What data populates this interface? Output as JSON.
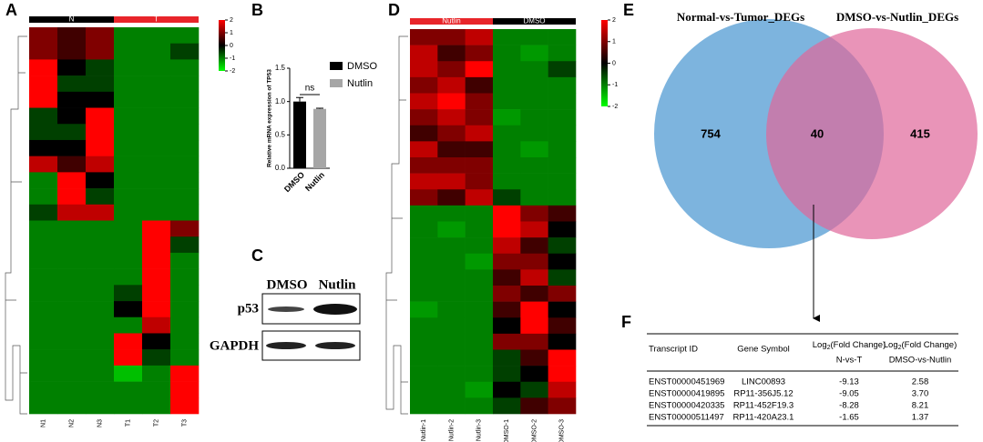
{
  "panels": {
    "a": "A",
    "b": "B",
    "c": "C",
    "d": "D",
    "e": "E",
    "f": "F"
  },
  "heatmap_a": {
    "groups": [
      "N",
      "T"
    ],
    "columns": [
      "N1",
      "N2",
      "N3",
      "T1",
      "T2",
      "T3"
    ],
    "colorbar_ticks": [
      2,
      1,
      0,
      -1,
      -2
    ],
    "blocks": [
      [
        1,
        0.5,
        1,
        -1,
        -1,
        -1
      ],
      [
        1,
        0.5,
        1,
        -1,
        -1,
        -0.5
      ],
      [
        2,
        0,
        -0.5,
        -1,
        -1,
        -1
      ],
      [
        2,
        -0.5,
        -0.5,
        -1,
        -1,
        -1
      ],
      [
        2,
        0,
        0,
        -1,
        -1,
        -1
      ],
      [
        -0.5,
        0,
        2,
        -1,
        -1,
        -1
      ],
      [
        -0.5,
        -0.5,
        2,
        -1,
        -1,
        -1
      ],
      [
        0,
        0,
        2,
        -1,
        -1,
        -1
      ],
      [
        1.5,
        0.5,
        1.5,
        -1,
        -1,
        -1
      ],
      [
        -1,
        2,
        0,
        -1,
        -1,
        -1
      ],
      [
        -1,
        2,
        -0.5,
        -1,
        -1,
        -1
      ],
      [
        -0.5,
        1.5,
        1.5,
        -1,
        -1,
        -1
      ],
      [
        -1,
        -1,
        -1,
        -1,
        2,
        1
      ],
      [
        -1,
        -1,
        -1,
        -1,
        2,
        -0.5
      ],
      [
        -1,
        -1,
        -1,
        -1,
        2,
        -1
      ],
      [
        -1,
        -1,
        -1,
        -1,
        2,
        -1
      ],
      [
        -1,
        -1,
        -1,
        -0.5,
        2,
        -1
      ],
      [
        -1,
        -1,
        -1,
        0,
        2,
        -1
      ],
      [
        -1,
        -1,
        -1,
        -1,
        1.5,
        -1
      ],
      [
        -1,
        -1,
        -1,
        2,
        0,
        -1
      ],
      [
        -1,
        -1,
        -1,
        2,
        -0.5,
        -1
      ],
      [
        -1,
        -1,
        -1,
        -1.5,
        -1,
        2
      ],
      [
        -1,
        -1,
        -1,
        -1,
        -1,
        2
      ],
      [
        -1,
        -1,
        -1,
        -1,
        -1,
        2
      ]
    ]
  },
  "bar_chart": {
    "type": "bar",
    "ylabel": "Relative mRNA expression of TP53",
    "categories": [
      "DMSO",
      "Nutlin"
    ],
    "values": [
      1.0,
      0.89
    ],
    "errors": [
      0.06,
      0.01
    ],
    "colors": [
      "#000000",
      "#a6a6a6"
    ],
    "ylim": [
      0,
      1.5
    ],
    "yticks": [
      {
        "value": 0,
        "label": "0.0"
      },
      {
        "value": 0.5,
        "label": "0.5"
      },
      {
        "value": 1,
        "label": "1.0"
      },
      {
        "value": 1.5,
        "label": "1.5"
      }
    ],
    "annotation": "ns"
  },
  "blot": {
    "lanes": [
      "DMSO",
      "Nutlin"
    ],
    "rows": [
      "p53",
      "GAPDH"
    ]
  },
  "heatmap_d": {
    "groups": [
      "Nutlin",
      "DMSO"
    ],
    "columns": [
      "Nutlin-1",
      "Nutlin-2",
      "Nutlin-3",
      "DMSO-1",
      "DMSO-2",
      "DMSO-3"
    ],
    "colorbar_ticks": [
      2,
      1,
      0,
      -1,
      -2
    ],
    "blocks": [
      [
        1,
        1,
        1.5,
        -1,
        -1,
        -1
      ],
      [
        1.5,
        0.5,
        1,
        -1,
        -1.2,
        -1
      ],
      [
        1.5,
        1,
        2,
        -1,
        -1,
        -0.5
      ],
      [
        1,
        1.5,
        0.5,
        -1,
        -1,
        -1
      ],
      [
        1.5,
        2,
        1,
        -1,
        -1,
        -1
      ],
      [
        1,
        1.5,
        1,
        -1.2,
        -1,
        -1
      ],
      [
        0.5,
        1,
        1.5,
        -1,
        -1,
        -1
      ],
      [
        1.5,
        0.5,
        0.5,
        -1,
        -1.2,
        -1
      ],
      [
        1,
        1,
        1,
        -1,
        -1,
        -1
      ],
      [
        1.5,
        1.5,
        1,
        -1,
        -1,
        -1
      ],
      [
        1,
        0.5,
        1.5,
        -0.5,
        -1,
        -1
      ],
      [
        -1,
        -1,
        -1,
        2,
        1,
        0.5
      ],
      [
        -1,
        -1.2,
        -1,
        2,
        1.5,
        0
      ],
      [
        -1,
        -1,
        -1,
        1.5,
        0.5,
        -0.5
      ],
      [
        -1,
        -1,
        -1.2,
        1,
        1,
        0
      ],
      [
        -1,
        -1,
        -1,
        0.5,
        1.5,
        -0.5
      ],
      [
        -1,
        -1,
        -1,
        1,
        0.5,
        1
      ],
      [
        -1.2,
        -1,
        -1,
        0.5,
        2,
        0
      ],
      [
        -1,
        -1,
        -1,
        0,
        2,
        0.5
      ],
      [
        -1,
        -1,
        -1,
        1,
        1,
        0
      ],
      [
        -1,
        -1,
        -1,
        -0.5,
        0.5,
        2
      ],
      [
        -1,
        -1,
        -1,
        -0.5,
        0,
        2
      ],
      [
        -1,
        -1,
        -1.2,
        0,
        -0.5,
        1.5
      ],
      [
        -1,
        -1,
        -1,
        -0.5,
        0.5,
        1
      ]
    ]
  },
  "venn": {
    "sets": [
      "Normal-vs-Tumor_DEGs",
      "DMSO-vs-Nutlin_DEGs"
    ],
    "left_only": "754",
    "both": "40",
    "right_only": "415"
  },
  "table": {
    "headers": [
      {
        "line1": "Transcript ID"
      },
      {
        "line1": "Gene Symbol"
      },
      {
        "pre": "Log",
        "sub": "2",
        "post": "(Fold Change)",
        "line2": "N-vs-T"
      },
      {
        "pre": "Log",
        "sub": "2",
        "post": "(Fold Change)",
        "line2": "DMSO-vs-Nutlin"
      }
    ],
    "rows": [
      [
        "ENST00000451969",
        "LINC00893",
        "-9.13",
        "2.58"
      ],
      [
        "ENST00000419895",
        "RP11-356J5.12",
        "-9.05",
        "3.70"
      ],
      [
        "ENST00000420335",
        "RP11-452F19.3",
        "-8.28",
        "8.21"
      ],
      [
        "ENST00000511497",
        "RP11-420A23.1",
        "-1.65",
        "1.37"
      ]
    ]
  }
}
